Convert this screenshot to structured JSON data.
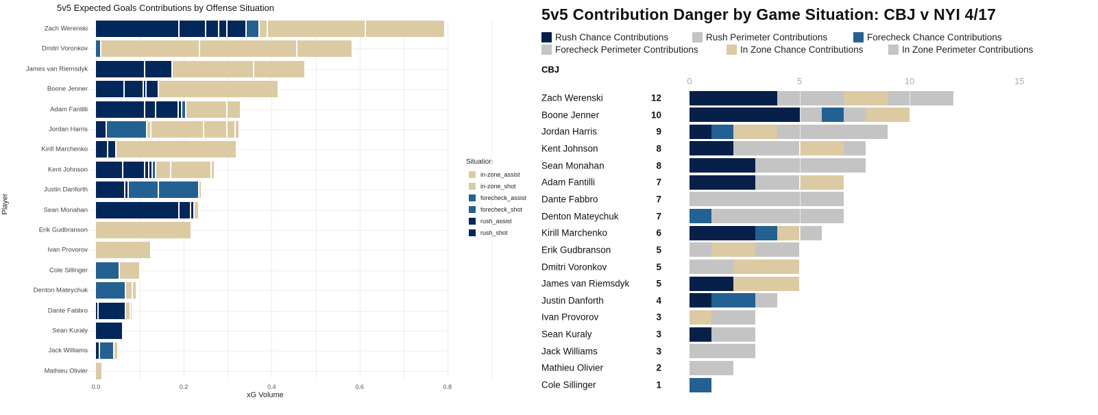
{
  "colors": {
    "rush": "#02275a",
    "forecheck": "#236192",
    "in-zone": "#dccaa3",
    "rush_chance": "#06204a",
    "forecheck_chance": "#236192",
    "in_zone_chance": "#dccaa3",
    "perimeter": "#c4c4c4"
  },
  "chart_data": [
    {
      "type": "bar",
      "orientation": "horizontal",
      "stacked": true,
      "title": "5v5 Expected Goals Contributions by Offense Situation",
      "xlabel": "xG Volume",
      "ylabel": "Player",
      "xlim": [
        0,
        0.82
      ],
      "xticks": [
        "0.0",
        "0.2",
        "0.4",
        "0.6",
        "0.8"
      ],
      "grid": true,
      "legend_position": "right",
      "legend": {
        "title": "Situation",
        "items": [
          {
            "label": "in-zone_assist",
            "group": "in-zone"
          },
          {
            "label": "in-zone_shot",
            "group": "in-zone"
          },
          {
            "label": "forecheck_assist",
            "group": "forecheck"
          },
          {
            "label": "forecheck_shot",
            "group": "forecheck"
          },
          {
            "label": "rush_assist",
            "group": "rush"
          },
          {
            "label": "rush_shot",
            "group": "rush"
          }
        ]
      },
      "players": [
        {
          "name": "Zach Werenski",
          "segments": [
            [
              "rush",
              0.191
            ],
            [
              "rush",
              0.06
            ],
            [
              "rush",
              0.03
            ],
            [
              "rush",
              0.018
            ],
            [
              "rush",
              0.044
            ],
            [
              "forecheck",
              0.03
            ],
            [
              "in-zone",
              0.018
            ],
            [
              "in-zone",
              0.223
            ],
            [
              "in-zone",
              0.182
            ]
          ]
        },
        {
          "name": "Dmitri Voronkov",
          "segments": [
            [
              "forecheck",
              0.012
            ],
            [
              "in-zone",
              0.225
            ],
            [
              "in-zone",
              0.221
            ],
            [
              "in-zone",
              0.127
            ]
          ]
        },
        {
          "name": "James van Riemsdyk",
          "segments": [
            [
              "rush",
              0.112
            ],
            [
              "rush",
              0.062
            ],
            [
              "in-zone",
              0.187
            ],
            [
              "in-zone",
              0.117
            ]
          ]
        },
        {
          "name": "Boone Jenner",
          "segments": [
            [
              "rush",
              0.065
            ],
            [
              "rush",
              0.044
            ],
            [
              "rush",
              0.006
            ],
            [
              "rush",
              0.028
            ],
            [
              "in-zone",
              0.274
            ]
          ]
        },
        {
          "name": "Adam Fantilli",
          "segments": [
            [
              "rush",
              0.112
            ],
            [
              "rush",
              0.025
            ],
            [
              "rush",
              0.051
            ],
            [
              "rush",
              0.009
            ],
            [
              "forecheck",
              0.009
            ],
            [
              "in-zone",
              0.094
            ],
            [
              "in-zone",
              0.03
            ]
          ]
        },
        {
          "name": "Jordan Harris",
          "segments": [
            [
              "rush",
              0.025
            ],
            [
              "forecheck",
              0.092
            ],
            [
              "in-zone",
              0.009
            ],
            [
              "in-zone",
              0.12
            ],
            [
              "in-zone",
              0.053
            ],
            [
              "in-zone",
              0.02
            ],
            [
              "in-zone",
              0.008
            ]
          ]
        },
        {
          "name": "Kirill Marchenko",
          "segments": [
            [
              "rush",
              0.028
            ],
            [
              "rush",
              0.019
            ],
            [
              "in-zone",
              0.274
            ]
          ]
        },
        {
          "name": "Kent Johnson",
          "segments": [
            [
              "rush",
              0.062
            ],
            [
              "rush",
              0.051
            ],
            [
              "rush",
              0.008
            ],
            [
              "rush",
              0.008
            ],
            [
              "forecheck",
              0.009
            ],
            [
              "in-zone",
              0.033
            ],
            [
              "in-zone",
              0.093
            ],
            [
              "in-zone",
              0.007
            ]
          ]
        },
        {
          "name": "Justin Danforth",
          "segments": [
            [
              "rush",
              0.067
            ],
            [
              "rush",
              0.008
            ],
            [
              "forecheck",
              0.068
            ],
            [
              "forecheck",
              0.092
            ],
            [
              "in-zone",
              0.007
            ]
          ]
        },
        {
          "name": "Sean Monahan",
          "segments": [
            [
              "rush",
              0.191
            ],
            [
              "rush",
              0.026
            ],
            [
              "rush",
              0.007
            ],
            [
              "in-zone",
              0.012
            ]
          ]
        },
        {
          "name": "Erik Gudbranson",
          "segments": [
            [
              "in-zone",
              0.218
            ]
          ]
        },
        {
          "name": "Ivan Provorov",
          "segments": [
            [
              "in-zone",
              0.126
            ]
          ]
        },
        {
          "name": "Cole Sillinger",
          "segments": [
            [
              "forecheck",
              0.054
            ],
            [
              "in-zone",
              0.047
            ]
          ]
        },
        {
          "name": "Denton Mateychuk",
          "segments": [
            [
              "forecheck",
              0.068
            ],
            [
              "in-zone",
              0.016
            ],
            [
              "in-zone",
              0.009
            ],
            [
              "in-zone",
              0.003
            ]
          ]
        },
        {
          "name": "Dante Fabbro",
          "segments": [
            [
              "rush",
              0.006
            ],
            [
              "rush",
              0.062
            ],
            [
              "in-zone",
              0.011
            ],
            [
              "in-zone",
              0.006
            ]
          ]
        },
        {
          "name": "Sean Kuraly",
          "segments": [
            [
              "rush",
              0.062
            ]
          ]
        },
        {
          "name": "Jack Williams",
          "segments": [
            [
              "rush",
              0.009
            ],
            [
              "forecheck",
              0.033
            ],
            [
              "in-zone",
              0.01
            ]
          ]
        },
        {
          "name": "Mathieu Olivier",
          "segments": [
            [
              "in-zone",
              0.015
            ]
          ]
        }
      ]
    },
    {
      "type": "bar",
      "orientation": "horizontal",
      "stacked": true,
      "title": "5v5 Contribution Danger by Game Situation: CBJ v NYI 4/17",
      "team": "CBJ",
      "xlim": [
        0,
        15
      ],
      "xticks": [
        "0",
        "5",
        "10",
        "15"
      ],
      "legend_position": "top",
      "categories": [
        {
          "label": "Rush Chance Contributions",
          "color": "rush_chance"
        },
        {
          "label": "Rush Perimeter Contributions",
          "color": "perimeter"
        },
        {
          "label": "Forecheck Chance Contributions",
          "color": "forecheck_chance"
        },
        {
          "label": "Forecheck Perimeter Contributions",
          "color": "perimeter"
        },
        {
          "label": "In Zone Chance Contributions",
          "color": "in_zone_chance"
        },
        {
          "label": "In Zone Perimeter Contributions",
          "color": "perimeter"
        }
      ],
      "players": [
        {
          "name": "Zach Werenski",
          "total": "12",
          "segments": [
            [
              0,
              4
            ],
            [
              1,
              3
            ],
            [
              4,
              2
            ],
            [
              5,
              3
            ]
          ]
        },
        {
          "name": "Boone Jenner",
          "total": "10",
          "segments": [
            [
              0,
              5
            ],
            [
              1,
              1
            ],
            [
              2,
              1
            ],
            [
              3,
              1
            ],
            [
              4,
              2
            ]
          ]
        },
        {
          "name": "Jordan Harris",
          "total": "9",
          "segments": [
            [
              0,
              1
            ],
            [
              2,
              1
            ],
            [
              4,
              2
            ],
            [
              5,
              5
            ]
          ]
        },
        {
          "name": "Kent Johnson",
          "total": "8",
          "segments": [
            [
              0,
              2
            ],
            [
              1,
              3
            ],
            [
              4,
              2
            ],
            [
              5,
              1
            ]
          ]
        },
        {
          "name": "Sean Monahan",
          "total": "8",
          "segments": [
            [
              0,
              3
            ],
            [
              1,
              5
            ]
          ]
        },
        {
          "name": "Adam Fantilli",
          "total": "7",
          "segments": [
            [
              0,
              3
            ],
            [
              1,
              2
            ],
            [
              4,
              2
            ]
          ]
        },
        {
          "name": "Dante Fabbro",
          "total": "7",
          "segments": [
            [
              5,
              7
            ]
          ]
        },
        {
          "name": "Denton Mateychuk",
          "total": "7",
          "segments": [
            [
              2,
              1
            ],
            [
              5,
              6
            ]
          ]
        },
        {
          "name": "Kirill Marchenko",
          "total": "6",
          "segments": [
            [
              0,
              3
            ],
            [
              2,
              1
            ],
            [
              4,
              1
            ],
            [
              5,
              1
            ]
          ]
        },
        {
          "name": "Erik Gudbranson",
          "total": "5",
          "segments": [
            [
              1,
              1
            ],
            [
              4,
              2
            ],
            [
              5,
              2
            ]
          ]
        },
        {
          "name": "Dmitri Voronkov",
          "total": "5",
          "segments": [
            [
              1,
              2
            ],
            [
              4,
              3
            ]
          ]
        },
        {
          "name": "James van Riemsdyk",
          "total": "5",
          "segments": [
            [
              0,
              2
            ],
            [
              4,
              3
            ]
          ]
        },
        {
          "name": "Justin Danforth",
          "total": "4",
          "segments": [
            [
              0,
              1
            ],
            [
              2,
              2
            ],
            [
              3,
              1
            ]
          ]
        },
        {
          "name": "Ivan Provorov",
          "total": "3",
          "segments": [
            [
              4,
              1
            ],
            [
              5,
              2
            ]
          ]
        },
        {
          "name": "Sean Kuraly",
          "total": "3",
          "segments": [
            [
              0,
              1
            ],
            [
              5,
              2
            ]
          ]
        },
        {
          "name": "Jack Williams",
          "total": "3",
          "segments": [
            [
              5,
              3
            ]
          ]
        },
        {
          "name": "Mathieu Olivier",
          "total": "2",
          "segments": [
            [
              5,
              2
            ]
          ]
        },
        {
          "name": "Cole Sillinger",
          "total": "1",
          "segments": [
            [
              2,
              1
            ]
          ]
        }
      ]
    }
  ]
}
